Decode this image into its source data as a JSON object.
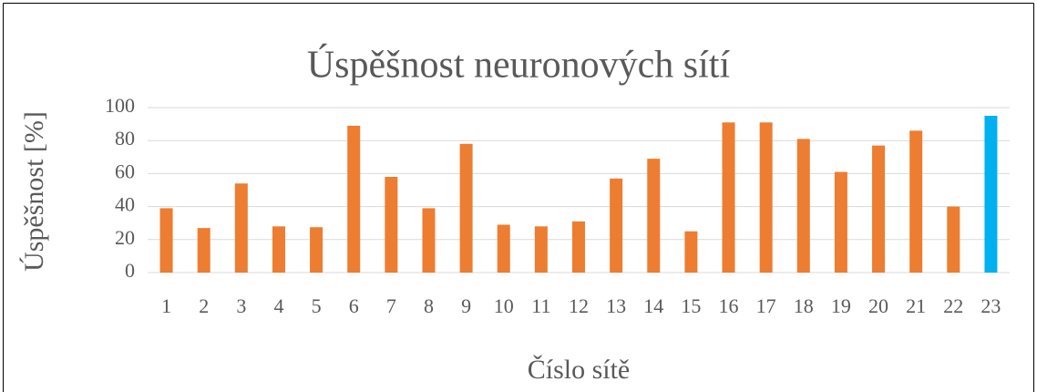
{
  "chart_data": {
    "type": "bar",
    "title": "Úspěšnost neuronových sítí",
    "x_label": "Číslo sítě",
    "y_label": "Úspěšnost [%]",
    "categories": [
      "1",
      "2",
      "3",
      "4",
      "5",
      "6",
      "7",
      "8",
      "9",
      "10",
      "11",
      "12",
      "13",
      "14",
      "15",
      "16",
      "17",
      "18",
      "19",
      "20",
      "21",
      "22",
      "23"
    ],
    "values": [
      39,
      27,
      54,
      28,
      27.5,
      89,
      58,
      39,
      78,
      29,
      28,
      31,
      57,
      69,
      25,
      91,
      91,
      81,
      61,
      77,
      86,
      40,
      95
    ],
    "colors": [
      "#ed7d31",
      "#ed7d31",
      "#ed7d31",
      "#ed7d31",
      "#ed7d31",
      "#ed7d31",
      "#ed7d31",
      "#ed7d31",
      "#ed7d31",
      "#ed7d31",
      "#ed7d31",
      "#ed7d31",
      "#ed7d31",
      "#ed7d31",
      "#ed7d31",
      "#ed7d31",
      "#ed7d31",
      "#ed7d31",
      "#ed7d31",
      "#ed7d31",
      "#ed7d31",
      "#ed7d31",
      "#00b0f0"
    ],
    "ylim": [
      0,
      100
    ],
    "yticks": [
      0,
      20,
      40,
      60,
      80,
      100
    ],
    "grid": true
  }
}
